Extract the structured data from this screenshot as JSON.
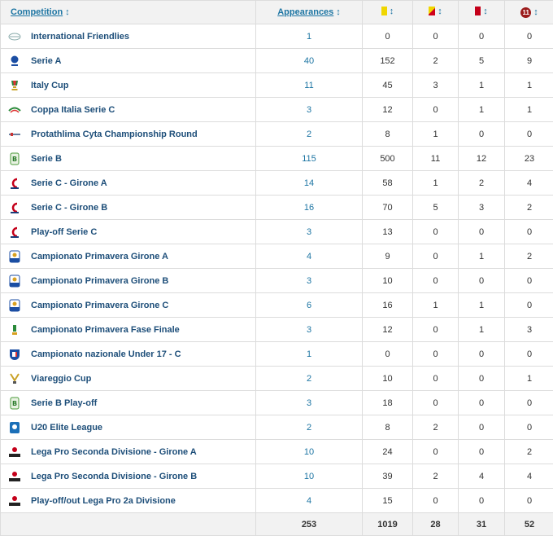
{
  "header": {
    "competition": "Competition",
    "appearances": "Appearances",
    "sort_glyph": "↕",
    "goals_icon_text": "11",
    "colors": {
      "yellow": "#f0d600",
      "red": "#c4001a",
      "goal": "#9b1b1b",
      "link": "#1d75a3"
    }
  },
  "rows": [
    {
      "name": "International Friendlies",
      "logo": "globe-logo-icon",
      "apps": "1",
      "yellow": "0",
      "yellowred": "0",
      "red": "0",
      "goals": "0"
    },
    {
      "name": "Serie A",
      "logo": "serie-a-logo-icon",
      "apps": "40",
      "yellow": "152",
      "yellowred": "2",
      "red": "5",
      "goals": "9"
    },
    {
      "name": "Italy Cup",
      "logo": "italy-cup-logo-icon",
      "apps": "11",
      "yellow": "45",
      "yellowred": "3",
      "red": "1",
      "goals": "1"
    },
    {
      "name": "Coppa Italia Serie C",
      "logo": "coppa-italia-serie-c-logo-icon",
      "apps": "3",
      "yellow": "12",
      "yellowred": "0",
      "red": "1",
      "goals": "1"
    },
    {
      "name": "Protathlima Cyta Championship Round",
      "logo": "protathlima-logo-icon",
      "apps": "2",
      "yellow": "8",
      "yellowred": "1",
      "red": "0",
      "goals": "0"
    },
    {
      "name": "Serie B",
      "logo": "serie-b-logo-icon",
      "apps": "115",
      "yellow": "500",
      "yellowred": "11",
      "red": "12",
      "goals": "23"
    },
    {
      "name": "Serie C - Girone A",
      "logo": "serie-c-logo-icon",
      "apps": "14",
      "yellow": "58",
      "yellowred": "1",
      "red": "2",
      "goals": "4"
    },
    {
      "name": "Serie C - Girone B",
      "logo": "serie-c-logo-icon",
      "apps": "16",
      "yellow": "70",
      "yellowred": "5",
      "red": "3",
      "goals": "2"
    },
    {
      "name": "Play-off Serie C",
      "logo": "serie-c-logo-icon",
      "apps": "3",
      "yellow": "13",
      "yellowred": "0",
      "red": "0",
      "goals": "0"
    },
    {
      "name": "Campionato Primavera Girone A",
      "logo": "primavera-logo-icon",
      "apps": "4",
      "yellow": "9",
      "yellowred": "0",
      "red": "1",
      "goals": "2"
    },
    {
      "name": "Campionato Primavera Girone B",
      "logo": "primavera-logo-icon",
      "apps": "3",
      "yellow": "10",
      "yellowred": "0",
      "red": "0",
      "goals": "0"
    },
    {
      "name": "Campionato Primavera Girone C",
      "logo": "primavera-logo-icon",
      "apps": "6",
      "yellow": "16",
      "yellowred": "1",
      "red": "1",
      "goals": "0"
    },
    {
      "name": "Campionato Primavera Fase Finale",
      "logo": "primavera-final-logo-icon",
      "apps": "3",
      "yellow": "12",
      "yellowred": "0",
      "red": "1",
      "goals": "3"
    },
    {
      "name": "Campionato nazionale Under 17 - C",
      "logo": "figc-logo-icon",
      "apps": "1",
      "yellow": "0",
      "yellowred": "0",
      "red": "0",
      "goals": "0"
    },
    {
      "name": "Viareggio Cup",
      "logo": "viareggio-cup-logo-icon",
      "apps": "2",
      "yellow": "10",
      "yellowred": "0",
      "red": "0",
      "goals": "1"
    },
    {
      "name": "Serie B Play-off",
      "logo": "serie-b-logo-icon",
      "apps": "3",
      "yellow": "18",
      "yellowred": "0",
      "red": "0",
      "goals": "0"
    },
    {
      "name": "U20 Elite League",
      "logo": "u20-elite-league-logo-icon",
      "apps": "2",
      "yellow": "8",
      "yellowred": "2",
      "red": "0",
      "goals": "0"
    },
    {
      "name": "Lega Pro Seconda Divisione - Girone A",
      "logo": "lega-pro-logo-icon",
      "apps": "10",
      "yellow": "24",
      "yellowred": "0",
      "red": "0",
      "goals": "2"
    },
    {
      "name": "Lega Pro Seconda Divisione - Girone B",
      "logo": "lega-pro-logo-icon",
      "apps": "10",
      "yellow": "39",
      "yellowred": "2",
      "red": "4",
      "goals": "4"
    },
    {
      "name": "Play-off/out Lega Pro 2a Divisione",
      "logo": "lega-pro-logo-icon",
      "apps": "4",
      "yellow": "15",
      "yellowred": "0",
      "red": "0",
      "goals": "0"
    }
  ],
  "totals": {
    "apps": "253",
    "yellow": "1019",
    "yellowred": "28",
    "red": "31",
    "goals": "52"
  }
}
